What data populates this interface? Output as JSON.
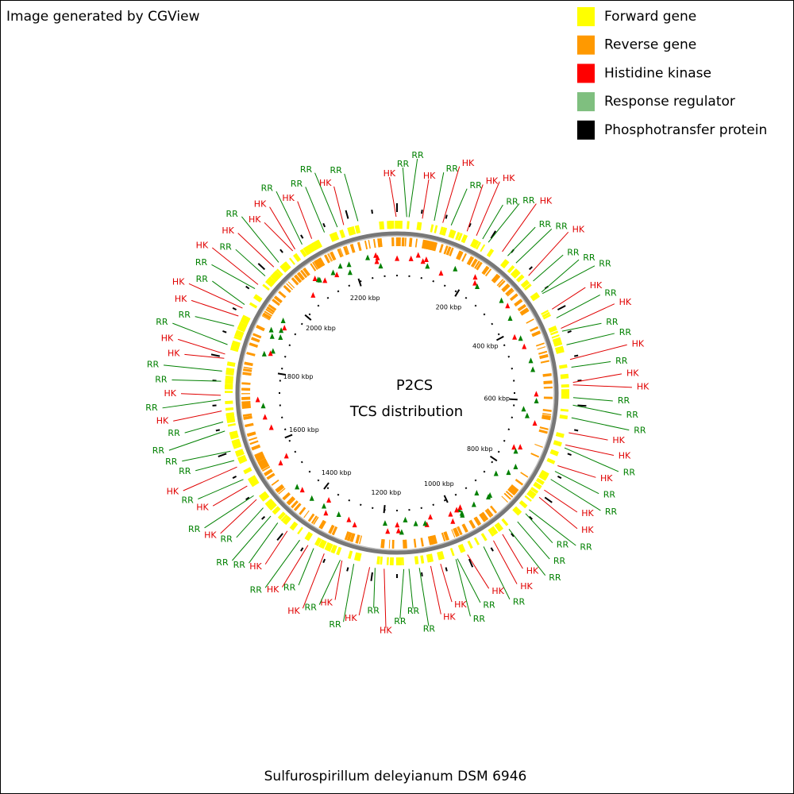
{
  "header": {
    "note": "Image generated by CGView"
  },
  "legend": [
    {
      "label": "Forward gene",
      "color": "#ffff00"
    },
    {
      "label": "Reverse gene",
      "color": "#ff9900"
    },
    {
      "label": "Histidine kinase",
      "color": "#ff0000"
    },
    {
      "label": "Response regulator",
      "color": "#7fbf7f"
    },
    {
      "label": "Phosphotransfer protein",
      "color": "#000000"
    }
  ],
  "center": {
    "title": "P2CS",
    "subtitle": "TCS distribution"
  },
  "scale": {
    "lim": [
      0,
      2320
    ],
    "ticks": [
      {
        "value": 200,
        "label": "200 kbp"
      },
      {
        "value": 400,
        "label": "400 kbp"
      },
      {
        "value": 600,
        "label": "600 kbp"
      },
      {
        "value": 800,
        "label": "800 kbp"
      },
      {
        "value": 1000,
        "label": "1000 kbp"
      },
      {
        "value": 1200,
        "label": "1200 kbp"
      },
      {
        "value": 1400,
        "label": "1400 kbp"
      },
      {
        "value": 1600,
        "label": "1600 kbp"
      },
      {
        "value": 1800,
        "label": "1800 kbp"
      },
      {
        "value": 2000,
        "label": "2000 kbp"
      },
      {
        "value": 2200,
        "label": "2200 kbp"
      }
    ]
  },
  "labels": [
    {
      "text": "HK",
      "color": "#e00000"
    },
    {
      "text": "RR",
      "color": "#008000"
    },
    {
      "text": "RR",
      "color": "#008000"
    },
    {
      "text": "HK",
      "color": "#e00000"
    },
    {
      "text": "RR",
      "color": "#008000"
    },
    {
      "text": "HK",
      "color": "#e00000"
    },
    {
      "text": "RR",
      "color": "#008000"
    },
    {
      "text": "HK",
      "color": "#e00000"
    },
    {
      "text": "HK",
      "color": "#e00000"
    },
    {
      "text": "RR",
      "color": "#008000"
    },
    {
      "text": "RR",
      "color": "#008000"
    },
    {
      "text": "HK",
      "color": "#e00000"
    },
    {
      "text": "RR",
      "color": "#008000"
    },
    {
      "text": "RR",
      "color": "#008000"
    },
    {
      "text": "HK",
      "color": "#e00000"
    },
    {
      "text": "RR",
      "color": "#008000"
    },
    {
      "text": "RR",
      "color": "#008000"
    },
    {
      "text": "RR",
      "color": "#008000"
    },
    {
      "text": "HK",
      "color": "#e00000"
    },
    {
      "text": "RR",
      "color": "#008000"
    },
    {
      "text": "HK",
      "color": "#e00000"
    },
    {
      "text": "RR",
      "color": "#008000"
    },
    {
      "text": "RR",
      "color": "#008000"
    },
    {
      "text": "HK",
      "color": "#e00000"
    },
    {
      "text": "RR",
      "color": "#008000"
    },
    {
      "text": "HK",
      "color": "#e00000"
    },
    {
      "text": "HK",
      "color": "#e00000"
    },
    {
      "text": "RR",
      "color": "#008000"
    },
    {
      "text": "RR",
      "color": "#008000"
    },
    {
      "text": "RR",
      "color": "#008000"
    },
    {
      "text": "HK",
      "color": "#e00000"
    },
    {
      "text": "HK",
      "color": "#e00000"
    },
    {
      "text": "RR",
      "color": "#008000"
    },
    {
      "text": "HK",
      "color": "#e00000"
    },
    {
      "text": "RR",
      "color": "#008000"
    },
    {
      "text": "RR",
      "color": "#008000"
    },
    {
      "text": "HK",
      "color": "#e00000"
    },
    {
      "text": "HK",
      "color": "#e00000"
    },
    {
      "text": "RR",
      "color": "#008000"
    },
    {
      "text": "RR",
      "color": "#008000"
    },
    {
      "text": "RR",
      "color": "#008000"
    },
    {
      "text": "RR",
      "color": "#008000"
    },
    {
      "text": "HK",
      "color": "#e00000"
    },
    {
      "text": "HK",
      "color": "#e00000"
    },
    {
      "text": "RR",
      "color": "#008000"
    },
    {
      "text": "HK",
      "color": "#e00000"
    },
    {
      "text": "RR",
      "color": "#008000"
    },
    {
      "text": "RR",
      "color": "#008000"
    },
    {
      "text": "HK",
      "color": "#e00000"
    },
    {
      "text": "HK",
      "color": "#e00000"
    },
    {
      "text": "RR",
      "color": "#008000"
    },
    {
      "text": "RR",
      "color": "#008000"
    },
    {
      "text": "RR",
      "color": "#008000"
    },
    {
      "text": "HK",
      "color": "#e00000"
    },
    {
      "text": "RR",
      "color": "#008000"
    },
    {
      "text": "HK",
      "color": "#e00000"
    },
    {
      "text": "RR",
      "color": "#008000"
    },
    {
      "text": "HK",
      "color": "#e00000"
    },
    {
      "text": "RR",
      "color": "#008000"
    },
    {
      "text": "HK",
      "color": "#e00000"
    },
    {
      "text": "RR",
      "color": "#008000"
    },
    {
      "text": "HK",
      "color": "#e00000"
    },
    {
      "text": "RR",
      "color": "#008000"
    },
    {
      "text": "HK",
      "color": "#e00000"
    },
    {
      "text": "RR",
      "color": "#008000"
    },
    {
      "text": "RR",
      "color": "#008000"
    },
    {
      "text": "RR",
      "color": "#008000"
    },
    {
      "text": "HK",
      "color": "#e00000"
    },
    {
      "text": "RR",
      "color": "#008000"
    },
    {
      "text": "HK",
      "color": "#e00000"
    },
    {
      "text": "RR",
      "color": "#008000"
    },
    {
      "text": "HK",
      "color": "#e00000"
    },
    {
      "text": "RR",
      "color": "#008000"
    },
    {
      "text": "RR",
      "color": "#008000"
    },
    {
      "text": "RR",
      "color": "#008000"
    },
    {
      "text": "RR",
      "color": "#008000"
    },
    {
      "text": "HK",
      "color": "#e00000"
    },
    {
      "text": "RR",
      "color": "#008000"
    },
    {
      "text": "HK",
      "color": "#e00000"
    },
    {
      "text": "RR",
      "color": "#008000"
    },
    {
      "text": "RR",
      "color": "#008000"
    },
    {
      "text": "HK",
      "color": "#e00000"
    },
    {
      "text": "HK",
      "color": "#e00000"
    },
    {
      "text": "RR",
      "color": "#008000"
    },
    {
      "text": "RR",
      "color": "#008000"
    },
    {
      "text": "HK",
      "color": "#e00000"
    },
    {
      "text": "HK",
      "color": "#e00000"
    },
    {
      "text": "RR",
      "color": "#008000"
    },
    {
      "text": "RR",
      "color": "#008000"
    },
    {
      "text": "HK",
      "color": "#e00000"
    },
    {
      "text": "RR",
      "color": "#008000"
    },
    {
      "text": "HK",
      "color": "#e00000"
    },
    {
      "text": "RR",
      "color": "#008000"
    },
    {
      "text": "HK",
      "color": "#e00000"
    },
    {
      "text": "HK",
      "color": "#e00000"
    },
    {
      "text": "RR",
      "color": "#008000"
    },
    {
      "text": "HK",
      "color": "#e00000"
    },
    {
      "text": "RR",
      "color": "#008000"
    },
    {
      "text": "RR",
      "color": "#008000"
    },
    {
      "text": "HK",
      "color": "#e00000"
    },
    {
      "text": "RR",
      "color": "#008000"
    }
  ],
  "footer": "Sulfurospirillum deleyianum DSM 6946"
}
